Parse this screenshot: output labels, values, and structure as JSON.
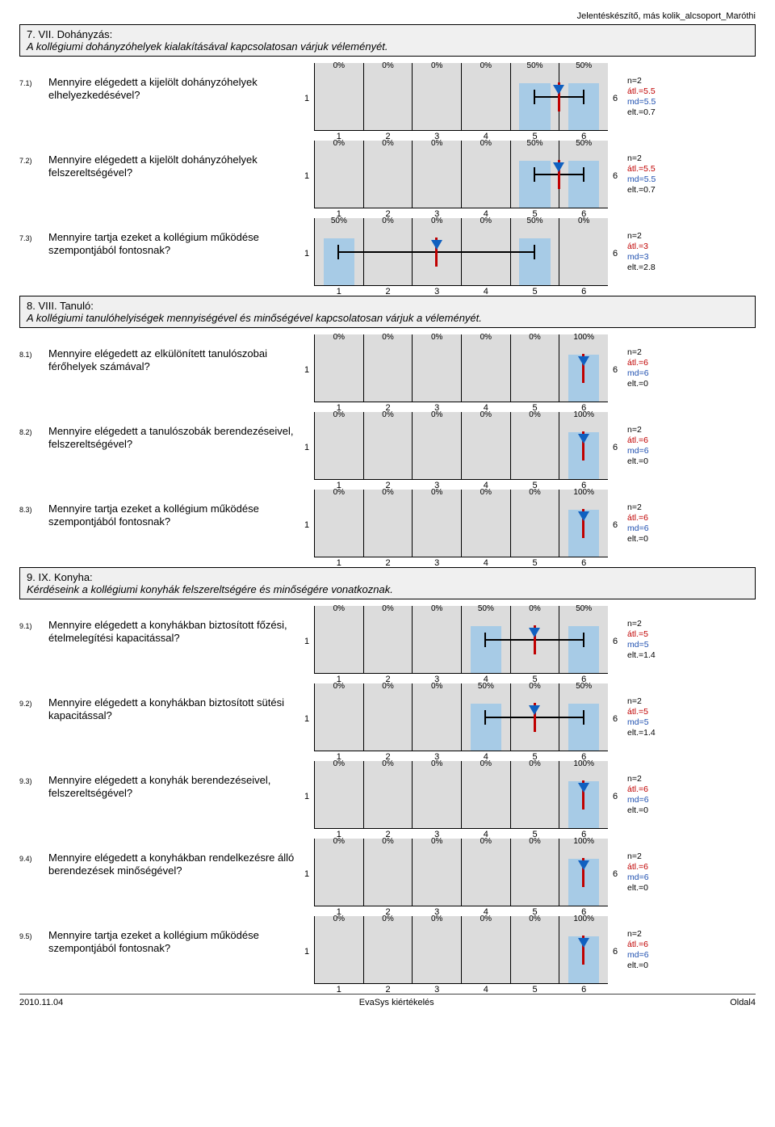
{
  "header_right": "Jelentéskészítő, más kolik_alcsoport_Maróthi",
  "scale": {
    "min": 1,
    "max": 6,
    "ticks": [
      1,
      2,
      3,
      4,
      5,
      6
    ]
  },
  "colors": {
    "bar": "#a7cbe6",
    "cell_bg": "#dcdcdc",
    "median": "#c00000",
    "mean": "#1060c0"
  },
  "sections": [
    {
      "title_line1": "7. VII. Dohányzás:",
      "title_line2": "A kollégiumi dohányzóhelyek kialakításával kapcsolatosan várjuk véleményét.",
      "questions": [
        {
          "num": "7.1)",
          "text": "Mennyire elégedett a kijelölt dohányzóhelyek elhelyezkedésével?",
          "pct": [
            0,
            0,
            0,
            0,
            50,
            50
          ],
          "mean": 5.5,
          "median": 5.5,
          "lo": 5,
          "hi": 6,
          "stats": {
            "n": "n=2",
            "atl": "átl.=5.5",
            "md": "md=5.5",
            "elt": "elt.=0.7"
          }
        },
        {
          "num": "7.2)",
          "text": "Mennyire elégedett a kijelölt dohányzóhelyek felszereltségével?",
          "pct": [
            0,
            0,
            0,
            0,
            50,
            50
          ],
          "mean": 5.5,
          "median": 5.5,
          "lo": 5,
          "hi": 6,
          "stats": {
            "n": "n=2",
            "atl": "átl.=5.5",
            "md": "md=5.5",
            "elt": "elt.=0.7"
          }
        },
        {
          "num": "7.3)",
          "text": "Mennyire tartja ezeket a kollégium működése szempontjából fontosnak?",
          "pct": [
            50,
            0,
            0,
            0,
            50,
            0
          ],
          "mean": 3,
          "median": 3,
          "lo": 1,
          "hi": 5,
          "stats": {
            "n": "n=2",
            "atl": "átl.=3",
            "md": "md=3",
            "elt": "elt.=2.8"
          }
        }
      ]
    },
    {
      "title_line1": "8. VIII. Tanuló:",
      "title_line2": "A kollégiumi tanulóhelyiségek mennyiségével és minőségével kapcsolatosan várjuk a véleményét.",
      "questions": [
        {
          "num": "8.1)",
          "text": "Mennyire elégedett az elkülönített tanulószobai férőhelyek számával?",
          "pct": [
            0,
            0,
            0,
            0,
            0,
            100
          ],
          "mean": 6,
          "median": 6,
          "lo": 6,
          "hi": 6,
          "stats": {
            "n": "n=2",
            "atl": "átl.=6",
            "md": "md=6",
            "elt": "elt.=0"
          }
        },
        {
          "num": "8.2)",
          "text": "Mennyire elégedett a tanulószobák berendezéseivel, felszereltségével?",
          "pct": [
            0,
            0,
            0,
            0,
            0,
            100
          ],
          "mean": 6,
          "median": 6,
          "lo": 6,
          "hi": 6,
          "stats": {
            "n": "n=2",
            "atl": "átl.=6",
            "md": "md=6",
            "elt": "elt.=0"
          }
        },
        {
          "num": "8.3)",
          "text": "Mennyire tartja ezeket a kollégium működése szempontjából fontosnak?",
          "pct": [
            0,
            0,
            0,
            0,
            0,
            100
          ],
          "mean": 6,
          "median": 6,
          "lo": 6,
          "hi": 6,
          "stats": {
            "n": "n=2",
            "atl": "átl.=6",
            "md": "md=6",
            "elt": "elt.=0"
          }
        }
      ]
    },
    {
      "title_line1": "9. IX. Konyha:",
      "title_line2": "Kérdéseink a kollégiumi konyhák felszereltségére és minőségére vonatkoznak.",
      "questions": [
        {
          "num": "9.1)",
          "text": "Mennyire elégedett a konyhákban biztosított főzési, ételmelegítési kapacitással?",
          "pct": [
            0,
            0,
            0,
            50,
            0,
            50
          ],
          "mean": 5,
          "median": 5,
          "lo": 4,
          "hi": 6,
          "stats": {
            "n": "n=2",
            "atl": "átl.=5",
            "md": "md=5",
            "elt": "elt.=1.4"
          }
        },
        {
          "num": "9.2)",
          "text": "Mennyire elégedett a konyhákban biztosított sütési kapacitással?",
          "pct": [
            0,
            0,
            0,
            50,
            0,
            50
          ],
          "mean": 5,
          "median": 5,
          "lo": 4,
          "hi": 6,
          "stats": {
            "n": "n=2",
            "atl": "átl.=5",
            "md": "md=5",
            "elt": "elt.=1.4"
          }
        },
        {
          "num": "9.3)",
          "text": "Mennyire elégedett a konyhák berendezéseivel, felszereltségével?",
          "pct": [
            0,
            0,
            0,
            0,
            0,
            100
          ],
          "mean": 6,
          "median": 6,
          "lo": 6,
          "hi": 6,
          "stats": {
            "n": "n=2",
            "atl": "átl.=6",
            "md": "md=6",
            "elt": "elt.=0"
          }
        },
        {
          "num": "9.4)",
          "text": "Mennyire elégedett a konyhákban rendelkezésre álló berendezések minőségével?",
          "pct": [
            0,
            0,
            0,
            0,
            0,
            100
          ],
          "mean": 6,
          "median": 6,
          "lo": 6,
          "hi": 6,
          "stats": {
            "n": "n=2",
            "atl": "átl.=6",
            "md": "md=6",
            "elt": "elt.=0"
          }
        },
        {
          "num": "9.5)",
          "text": "Mennyire tartja ezeket a kollégium működése szempontjából fontosnak?",
          "pct": [
            0,
            0,
            0,
            0,
            0,
            100
          ],
          "mean": 6,
          "median": 6,
          "lo": 6,
          "hi": 6,
          "stats": {
            "n": "n=2",
            "atl": "átl.=6",
            "md": "md=6",
            "elt": "elt.=0"
          }
        }
      ]
    }
  ],
  "footer": {
    "left": "2010.11.04",
    "center": "EvaSys kiértékelés",
    "right": "Oldal4"
  }
}
